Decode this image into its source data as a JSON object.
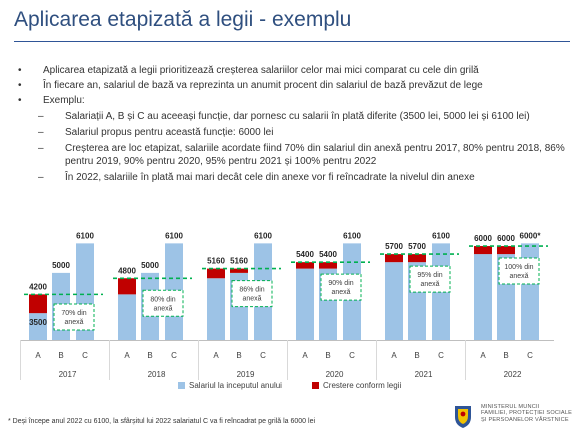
{
  "title": "Aplicarea etapizată a legii - exemplu",
  "bullets": [
    "Aplicarea etapizată a legii prioritizează creșterea salariilor celor mai mici comparat cu cele din grilă",
    "În fiecare an, salariul de bază va reprezinta un anumit procent din salariul de bază prevăzut de lege",
    "Exemplu:"
  ],
  "sub_bullets": [
    "Salariații A, B și C au aceeași funcție, dar pornesc cu salarii în plată diferite (3500 lei, 5000 lei și 6100 lei)",
    "Salariul propus pentru această funcție: 6000 lei",
    "Creșterea are loc etapizat, salariile acordate fiind 70% din salariul din anexă pentru 2017, 80% pentru 2018, 86% pentru 2019, 90% pentru 2020, 95% pentru 2021 și 100% pentru 2022",
    "În 2022, salariile în plată mai mari decât cele din anexe vor fi reîncadrate la nivelul din anexe"
  ],
  "colors": {
    "title": "#2f4f7f",
    "base": "#9dc3e6",
    "increase": "#c00000",
    "dashed": "#00b050",
    "box_border": "#00b050"
  },
  "chart_data": {
    "type": "bar",
    "stacked": true,
    "categories": [
      "A",
      "B",
      "C"
    ],
    "groups": [
      "2017",
      "2018",
      "2019",
      "2020",
      "2021",
      "2022"
    ],
    "series": [
      {
        "name": "Salariul la inceputul anului",
        "values": [
          [
            3500,
            5000,
            6100
          ],
          [
            4200,
            5000,
            6100
          ],
          [
            4800,
            5000,
            6100
          ],
          [
            5160,
            5160,
            6100
          ],
          [
            5400,
            5400,
            6100
          ],
          [
            5700,
            5700,
            6100
          ]
        ]
      },
      {
        "name": "Crestere conform legii",
        "values": [
          [
            700,
            0,
            0
          ],
          [
            600,
            0,
            0
          ],
          [
            360,
            160,
            0
          ],
          [
            240,
            240,
            0
          ],
          [
            300,
            300,
            0
          ],
          [
            300,
            300,
            0
          ]
        ]
      }
    ],
    "top_labels": [
      [
        "4200",
        "5000",
        "6100"
      ],
      [
        "4800",
        "5000",
        "6100"
      ],
      [
        "5160",
        "5160",
        "6100"
      ],
      [
        "5400",
        "5400",
        "6100"
      ],
      [
        "5700",
        "5700",
        "6100"
      ],
      [
        "6000",
        "6000",
        "6000*"
      ]
    ],
    "base_label": "3500",
    "thresholds": [
      4200,
      4800,
      5160,
      5400,
      5700,
      6000
    ],
    "percent_labels": [
      "70% din anexă",
      "80% din anexă",
      "86% din anexă",
      "90% din anexă",
      "95% din anexă",
      "100% din anexă"
    ],
    "ylim": [
      2500,
      6300
    ],
    "legend_position": "bottom"
  },
  "footnote": "* Deși începe anul 2022 cu 6100, la sfârșitul lui 2022 salariatul C va fi reîncadrat pe grilă la 6000 lei",
  "logo_text": [
    "MINISTERUL MUNCII",
    "FAMILIEI, PROTECȚIEI SOCIALE",
    "ȘI PERSOANELOR VÂRSTNICE"
  ],
  "logo_icon": "coat-of-arms-icon"
}
